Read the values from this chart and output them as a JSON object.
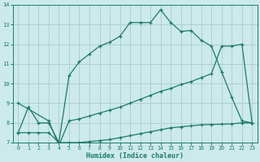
{
  "xlabel": "Humidex (Indice chaleur)",
  "bg_color": "#cceaea",
  "grid_color": "#aacccc",
  "line_color": "#1a7a6a",
  "xlim": [
    -0.5,
    23.5
  ],
  "ylim": [
    7,
    14
  ],
  "xticks": [
    0,
    1,
    2,
    3,
    4,
    5,
    6,
    7,
    8,
    9,
    10,
    11,
    12,
    13,
    14,
    15,
    16,
    17,
    18,
    19,
    20,
    21,
    22,
    23
  ],
  "yticks": [
    7,
    8,
    9,
    10,
    11,
    12,
    13,
    14
  ],
  "line1_x": [
    0,
    1,
    2,
    3,
    4,
    5,
    6,
    7,
    8,
    9,
    10,
    11,
    12,
    13,
    14,
    15,
    16,
    17,
    18,
    19,
    20,
    21,
    22,
    23
  ],
  "line1_y": [
    7.5,
    8.8,
    8.0,
    8.0,
    7.0,
    10.4,
    11.1,
    11.5,
    11.9,
    12.1,
    12.4,
    13.1,
    13.1,
    13.1,
    13.75,
    13.1,
    12.65,
    12.7,
    12.2,
    11.9,
    10.6,
    9.3,
    8.1,
    8.0
  ],
  "line2_x": [
    0,
    3,
    4,
    5,
    6,
    7,
    8,
    9,
    10,
    11,
    12,
    13,
    14,
    15,
    16,
    17,
    18,
    19,
    20,
    21,
    22,
    23
  ],
  "line2_y": [
    9.0,
    8.1,
    6.85,
    8.1,
    8.2,
    8.35,
    8.5,
    8.65,
    8.8,
    9.0,
    9.2,
    9.4,
    9.6,
    9.75,
    9.95,
    10.1,
    10.3,
    10.5,
    11.9,
    11.9,
    12.0,
    8.0
  ],
  "line3_x": [
    0,
    1,
    2,
    3,
    4,
    5,
    6,
    7,
    8,
    9,
    10,
    11,
    12,
    13,
    14,
    15,
    16,
    17,
    18,
    19,
    20,
    21,
    22,
    23
  ],
  "line3_y": [
    7.5,
    7.5,
    7.5,
    7.5,
    7.0,
    7.0,
    7.0,
    7.05,
    7.1,
    7.15,
    7.25,
    7.35,
    7.45,
    7.55,
    7.65,
    7.75,
    7.8,
    7.85,
    7.9,
    7.92,
    7.93,
    7.95,
    8.0,
    8.0
  ]
}
